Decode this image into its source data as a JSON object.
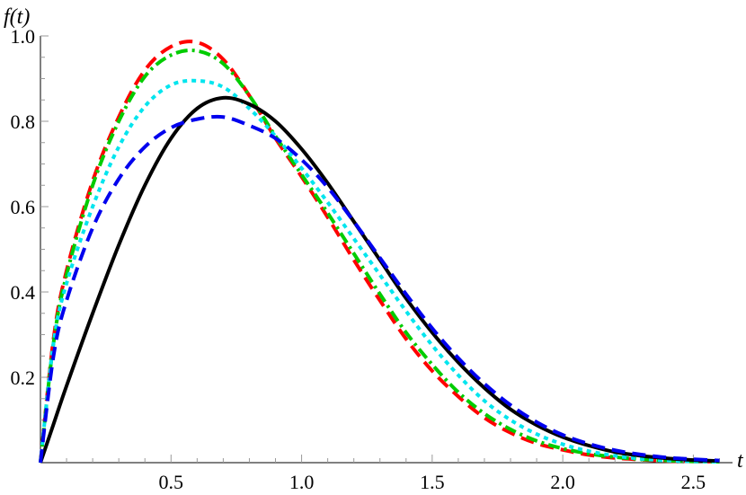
{
  "chart_data": {
    "type": "line",
    "xlabel": "t",
    "ylabel": "f(t)",
    "xlim": [
      0,
      2.65
    ],
    "ylim": [
      0,
      1.0
    ],
    "x_ticks": [
      {
        "value": 0.5,
        "label": "0.5"
      },
      {
        "value": 1.0,
        "label": "1.0"
      },
      {
        "value": 1.5,
        "label": "1.5"
      },
      {
        "value": 2.0,
        "label": "2.0"
      },
      {
        "value": 2.5,
        "label": "2.5"
      }
    ],
    "y_ticks": [
      {
        "value": 0.2,
        "label": "0.2"
      },
      {
        "value": 0.4,
        "label": "0.4"
      },
      {
        "value": 0.6,
        "label": "0.6"
      },
      {
        "value": 0.8,
        "label": "0.8"
      },
      {
        "value": 1.0,
        "label": "1.0"
      }
    ],
    "grid": false,
    "legend": "none",
    "series": [
      {
        "color": "#ff0000",
        "style": "dashed",
        "x": [
          0,
          0.05,
          0.1,
          0.2,
          0.3,
          0.4,
          0.5,
          0.6,
          0.7,
          0.8,
          0.9,
          1.0,
          1.1,
          1.2,
          1.3,
          1.4,
          1.5,
          1.6,
          1.7,
          1.8,
          1.9,
          2.0,
          2.1,
          2.2,
          2.3,
          2.4,
          2.5,
          2.6
        ],
        "y": [
          0,
          0.29,
          0.45,
          0.66,
          0.81,
          0.92,
          0.975,
          0.985,
          0.945,
          0.86,
          0.76,
          0.67,
          0.575,
          0.475,
          0.38,
          0.29,
          0.215,
          0.155,
          0.105,
          0.07,
          0.045,
          0.03,
          0.018,
          0.011,
          0.007,
          0.004,
          0.003,
          0.002
        ]
      },
      {
        "color": "#00cc00",
        "style": "dot-dash",
        "x": [
          0,
          0.05,
          0.1,
          0.2,
          0.3,
          0.4,
          0.5,
          0.6,
          0.7,
          0.8,
          0.9,
          1.0,
          1.1,
          1.2,
          1.3,
          1.4,
          1.5,
          1.6,
          1.7,
          1.8,
          1.9,
          2.0,
          2.1,
          2.2,
          2.3,
          2.4,
          2.5,
          2.6
        ],
        "y": [
          0,
          0.28,
          0.44,
          0.65,
          0.8,
          0.905,
          0.955,
          0.965,
          0.935,
          0.86,
          0.765,
          0.675,
          0.585,
          0.49,
          0.395,
          0.305,
          0.23,
          0.165,
          0.115,
          0.078,
          0.051,
          0.033,
          0.021,
          0.013,
          0.008,
          0.005,
          0.003,
          0.002
        ]
      },
      {
        "color": "#00e5ee",
        "style": "dotted",
        "x": [
          0,
          0.05,
          0.1,
          0.2,
          0.3,
          0.4,
          0.5,
          0.6,
          0.7,
          0.8,
          0.9,
          1.0,
          1.1,
          1.2,
          1.3,
          1.4,
          1.5,
          1.6,
          1.7,
          1.8,
          1.9,
          2.0,
          2.1,
          2.2,
          2.3,
          2.4,
          2.5,
          2.6
        ],
        "y": [
          0,
          0.28,
          0.42,
          0.6,
          0.74,
          0.835,
          0.885,
          0.895,
          0.88,
          0.83,
          0.765,
          0.69,
          0.61,
          0.525,
          0.44,
          0.355,
          0.275,
          0.205,
          0.145,
          0.1,
          0.067,
          0.043,
          0.027,
          0.016,
          0.009,
          0.005,
          0.003,
          0.002
        ]
      },
      {
        "color": "#000000",
        "style": "solid",
        "x": [
          0,
          0.05,
          0.1,
          0.2,
          0.3,
          0.4,
          0.5,
          0.6,
          0.7,
          0.8,
          0.9,
          1.0,
          1.1,
          1.2,
          1.3,
          1.4,
          1.5,
          1.6,
          1.7,
          1.8,
          1.9,
          2.0,
          2.1,
          2.2,
          2.3,
          2.4,
          2.5,
          2.6
        ],
        "y": [
          0,
          0.09,
          0.18,
          0.35,
          0.51,
          0.65,
          0.76,
          0.83,
          0.855,
          0.84,
          0.8,
          0.735,
          0.655,
          0.565,
          0.475,
          0.385,
          0.305,
          0.235,
          0.175,
          0.125,
          0.088,
          0.06,
          0.04,
          0.025,
          0.016,
          0.01,
          0.006,
          0.004
        ]
      },
      {
        "color": "#0000ee",
        "style": "dashed",
        "x": [
          0,
          0.05,
          0.1,
          0.2,
          0.3,
          0.4,
          0.5,
          0.6,
          0.7,
          0.8,
          0.9,
          1.0,
          1.1,
          1.2,
          1.3,
          1.4,
          1.5,
          1.6,
          1.7,
          1.8,
          1.9,
          2.0,
          2.1,
          2.2,
          2.3,
          2.4,
          2.5,
          2.6
        ],
        "y": [
          0,
          0.25,
          0.38,
          0.55,
          0.665,
          0.74,
          0.785,
          0.805,
          0.81,
          0.79,
          0.76,
          0.71,
          0.645,
          0.565,
          0.48,
          0.395,
          0.315,
          0.245,
          0.185,
          0.135,
          0.095,
          0.065,
          0.044,
          0.029,
          0.019,
          0.012,
          0.008,
          0.005
        ]
      }
    ]
  }
}
